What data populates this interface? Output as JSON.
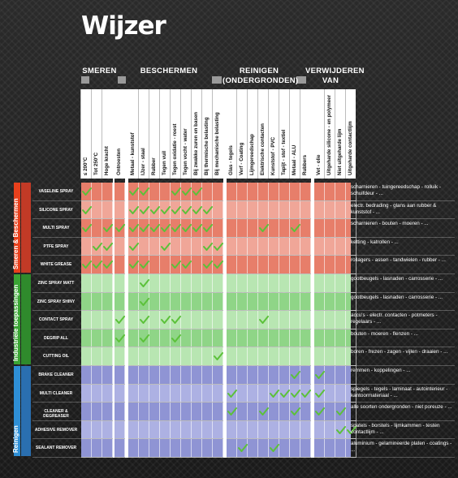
{
  "title": "Wijzer",
  "groups": [
    "SMEREN",
    "BESCHERMEN",
    "REINIGEN (ONDERGRONDEN)",
    "VERWIJDEREN VAN"
  ],
  "columns": [
    "≤ 200°C",
    "Tot 250°C",
    "Hoge kracht",
    "Ontroesten",
    "Metaal - kunststof",
    "IJzer - staal",
    "Rubber",
    "Tegen vuil",
    "Tegen oxidatie - roest",
    "Tegen vocht - water",
    "Bij zwakke zuren en basen",
    "Bij thermische belasting",
    "Bij mechanische belasting",
    "Glas - tegels",
    "Verf - Coating",
    "Lijmgereedschap",
    "Elektrische contacten",
    "Kunststof - PVC",
    "Tapijt - stof - textiel",
    "Metaal - ALU",
    "Rubbers",
    "Vet - olie",
    "Uitgeharde silicone - en polymeer",
    "Niet uitgeharde lijm",
    "Uitgeharde contactlijm"
  ],
  "categories": [
    "Smeren & Beschermen",
    "Industriële toepassingen",
    "Reinigen"
  ],
  "products": [
    {
      "name": "VASELINE SPRAY",
      "checks": [
        0,
        4,
        5,
        8,
        9,
        10
      ],
      "use": "scharnieren - tuingereedschap - rolluik - schuifdeur - ..."
    },
    {
      "name": "SILICONE SPRAY",
      "checks": [
        0,
        4,
        5,
        6,
        7,
        8,
        9,
        10,
        11
      ],
      "use": "electr. bedrading - glans aan rubber & kunststof - ..."
    },
    {
      "name": "MULTI SPRAY",
      "checks": [
        0,
        2,
        3,
        4,
        5,
        6,
        7,
        8,
        9,
        10,
        11,
        16,
        19
      ],
      "use": "scharnieren - bouten - moeren - ..."
    },
    {
      "name": "PTFE SPRAY",
      "checks": [
        1,
        2,
        4,
        7,
        11,
        12
      ],
      "use": "ketting - katrollen - ..."
    },
    {
      "name": "WHITE GREASE",
      "checks": [
        0,
        1,
        2,
        4,
        5,
        8,
        9,
        11,
        12
      ],
      "use": "rollagers - assen - tandwielen - rubber - ..."
    },
    {
      "name": "ZINC SPRAY MATT",
      "checks": [
        5
      ],
      "use": "gootbeugels - lasnaden - carrosserie - ..."
    },
    {
      "name": "ZINC SPRAY SHINY",
      "checks": [
        5
      ],
      "use": "gootbeugels - lasnaden - carrosserie - ..."
    },
    {
      "name": "CONTACT SPRAY",
      "checks": [
        3,
        5,
        7,
        8,
        16
      ],
      "use": "accu's - electr. contacten - potmeters - regelaars - ..."
    },
    {
      "name": "DEGRIP ALL",
      "checks": [
        3,
        5,
        8
      ],
      "use": "bouten - moeren - flenzen - ..."
    },
    {
      "name": "CUTTING OIL",
      "checks": [
        12
      ],
      "use": "boren - frezen - zagen - vijlen - draaien - ..."
    },
    {
      "name": "BRAKE CLEANER",
      "checks": [
        19,
        21
      ],
      "use": "remmen - koppelingen - ..."
    },
    {
      "name": "MULTI CLEANER",
      "checks": [
        13,
        17,
        18,
        19,
        20,
        21
      ],
      "use": "spiegels - tegels - laminaat - autointerieur - kantoormateriaal - ..."
    },
    {
      "name": "CLEANER & DEGREASER",
      "checks": [
        13,
        16,
        19,
        21,
        23
      ],
      "use": "alle soorten ondergronden - niet poreuze - ..."
    },
    {
      "name": "ADHESIVE REMOVER",
      "checks": [
        23,
        24
      ],
      "use": "spatels - borstels - lijmkammen - testen contactlijm - ..."
    },
    {
      "name": "SEALANT REMOVER",
      "checks": [
        14,
        17
      ],
      "use": "aluminium - gelamineerde platen - coatings - ..."
    }
  ],
  "colors": {
    "check": "#5cc13a",
    "red_light": "#f0a698",
    "red_dark": "#e77e6a",
    "green_light": "#b8e6b2",
    "green_dark": "#8fd587",
    "blue_light": "#adb1e3",
    "blue_dark": "#8f94d4"
  }
}
